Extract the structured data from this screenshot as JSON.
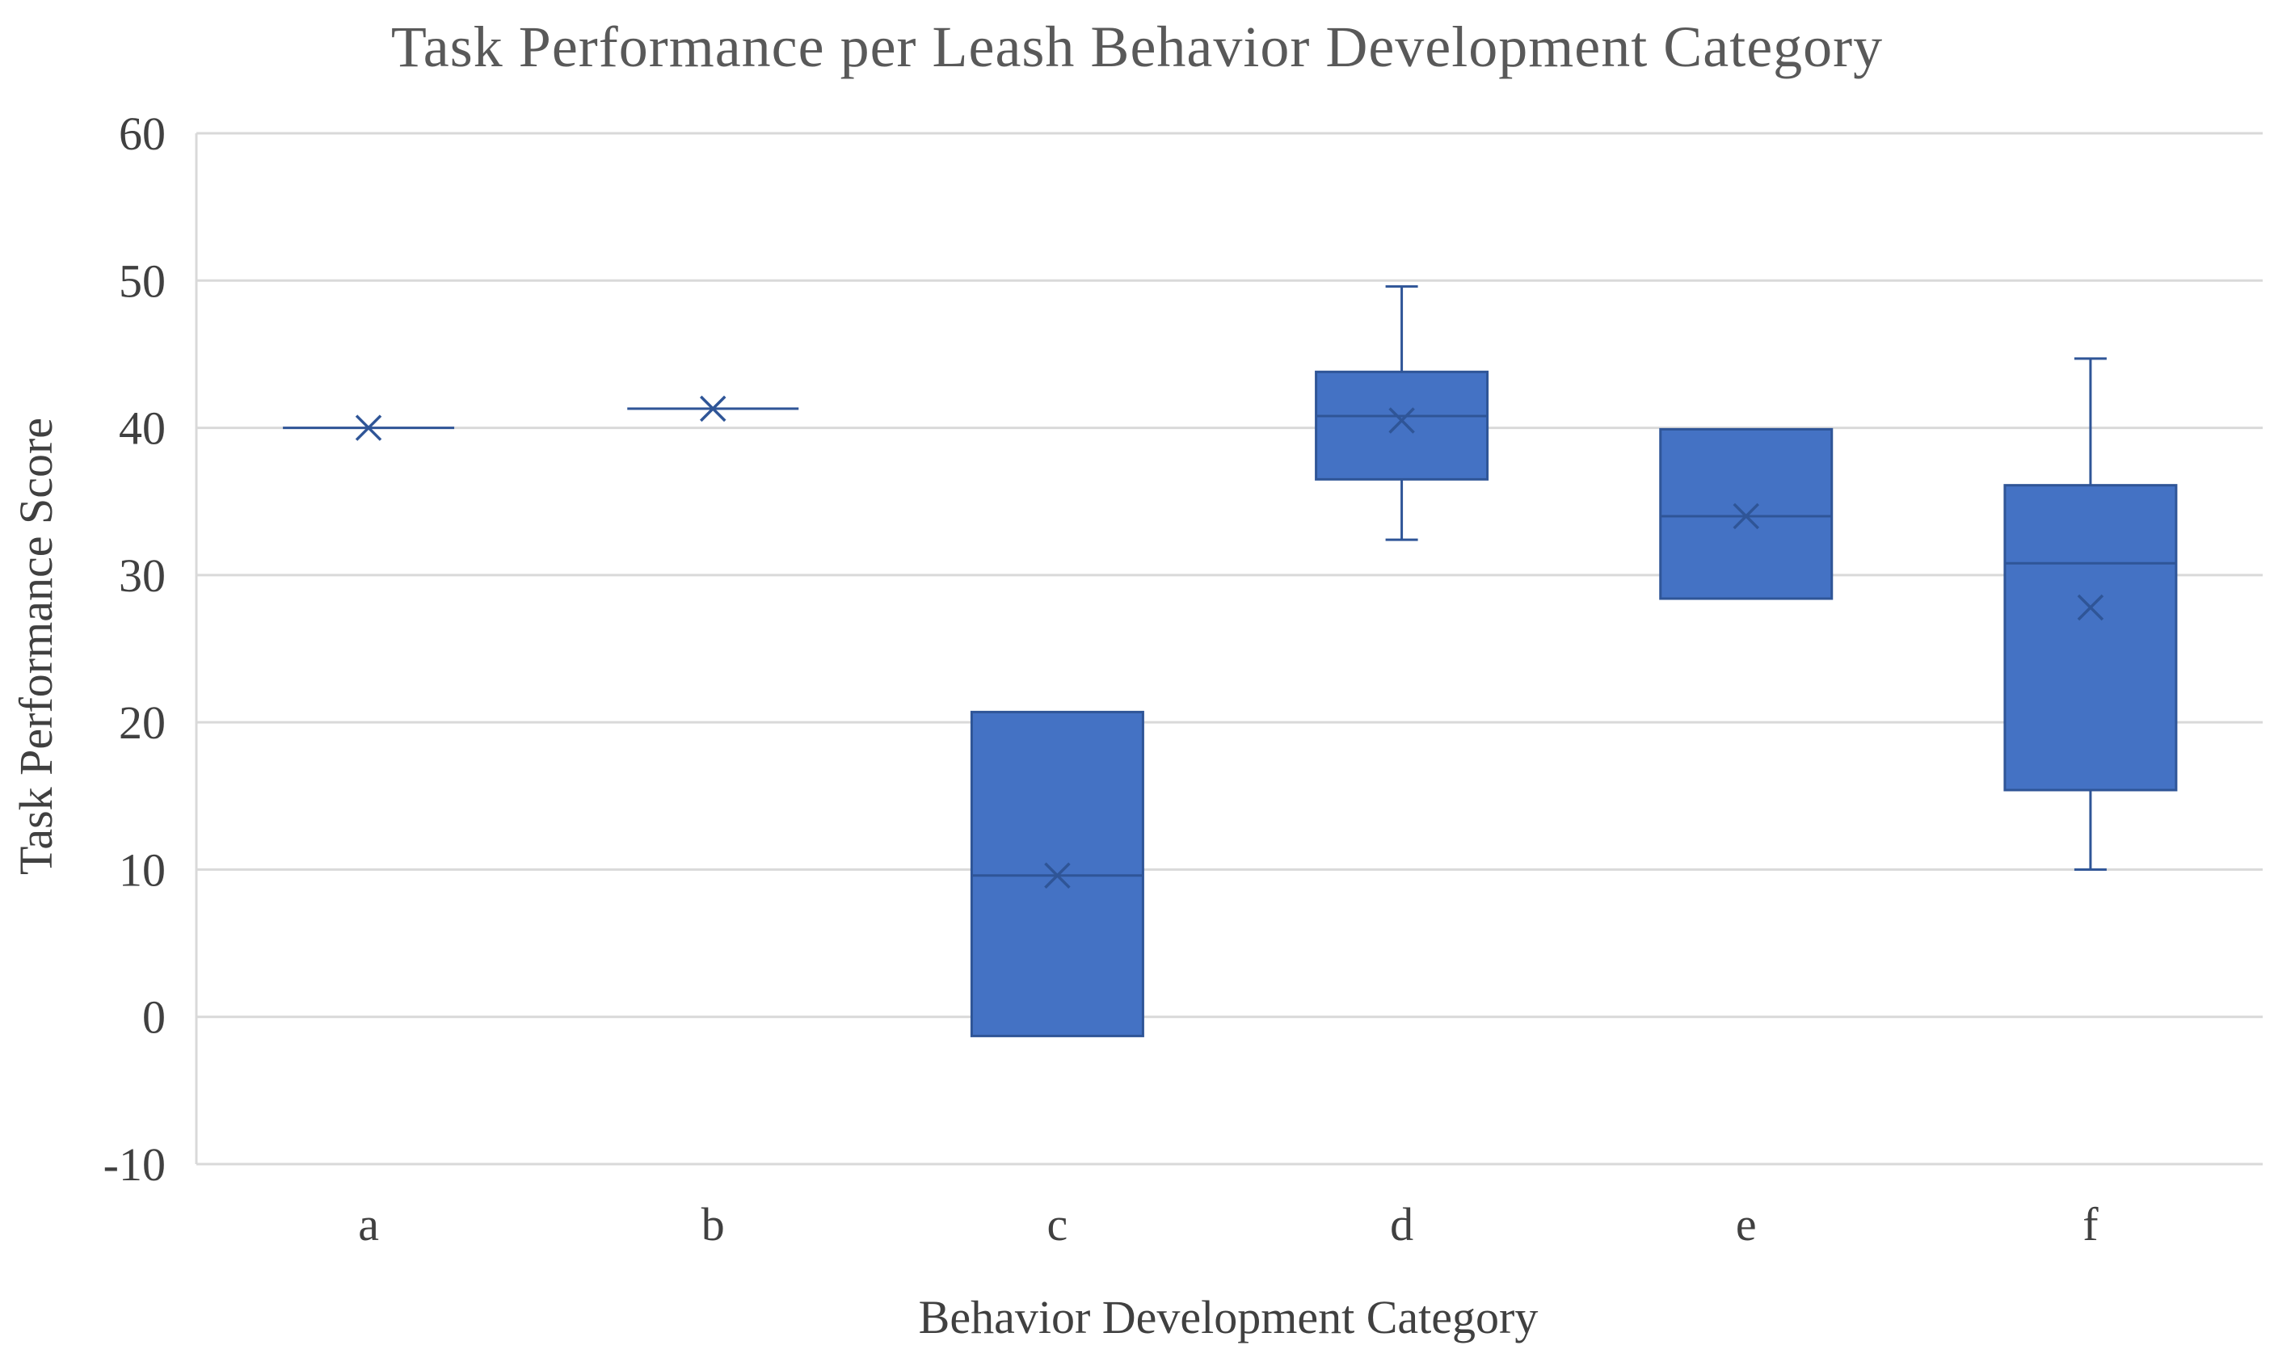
{
  "chart_data": {
    "type": "box",
    "title": "Task Performance per Leash Behavior Development Category",
    "xlabel": "Behavior Development Category",
    "ylabel": "Task Performance Score",
    "ylim": [
      -10,
      60
    ],
    "yticks": [
      -10,
      0,
      10,
      20,
      30,
      40,
      50,
      60
    ],
    "grid": true,
    "categories": [
      "a",
      "b",
      "c",
      "d",
      "e",
      "f"
    ],
    "boxes": [
      {
        "category": "a",
        "min": 40,
        "q1": 40,
        "median": 40,
        "q3": 40,
        "max": 40,
        "mean": 40
      },
      {
        "category": "b",
        "min": 41.3,
        "q1": 41.3,
        "median": 41.3,
        "q3": 41.3,
        "max": 41.3,
        "mean": 41.3
      },
      {
        "category": "c",
        "min": -1.3,
        "q1": -1.3,
        "median": 9.6,
        "q3": 20.7,
        "max": 20.7,
        "mean": 9.6
      },
      {
        "category": "d",
        "min": 32.4,
        "q1": 36.5,
        "median": 40.8,
        "q3": 43.8,
        "max": 49.6,
        "mean": 40.5
      },
      {
        "category": "e",
        "min": 28.4,
        "q1": 28.4,
        "median": 34,
        "q3": 39.9,
        "max": 39.9,
        "mean": 34
      },
      {
        "category": "f",
        "min": 10,
        "q1": 15.4,
        "median": 30.8,
        "q3": 36.1,
        "max": 44.7,
        "mean": 27.8
      }
    ],
    "colors": {
      "box_fill": "#4472C4",
      "box_stroke": "#2F5597",
      "whisker": "#2F5597",
      "mean_marker": "#2F5597"
    }
  }
}
